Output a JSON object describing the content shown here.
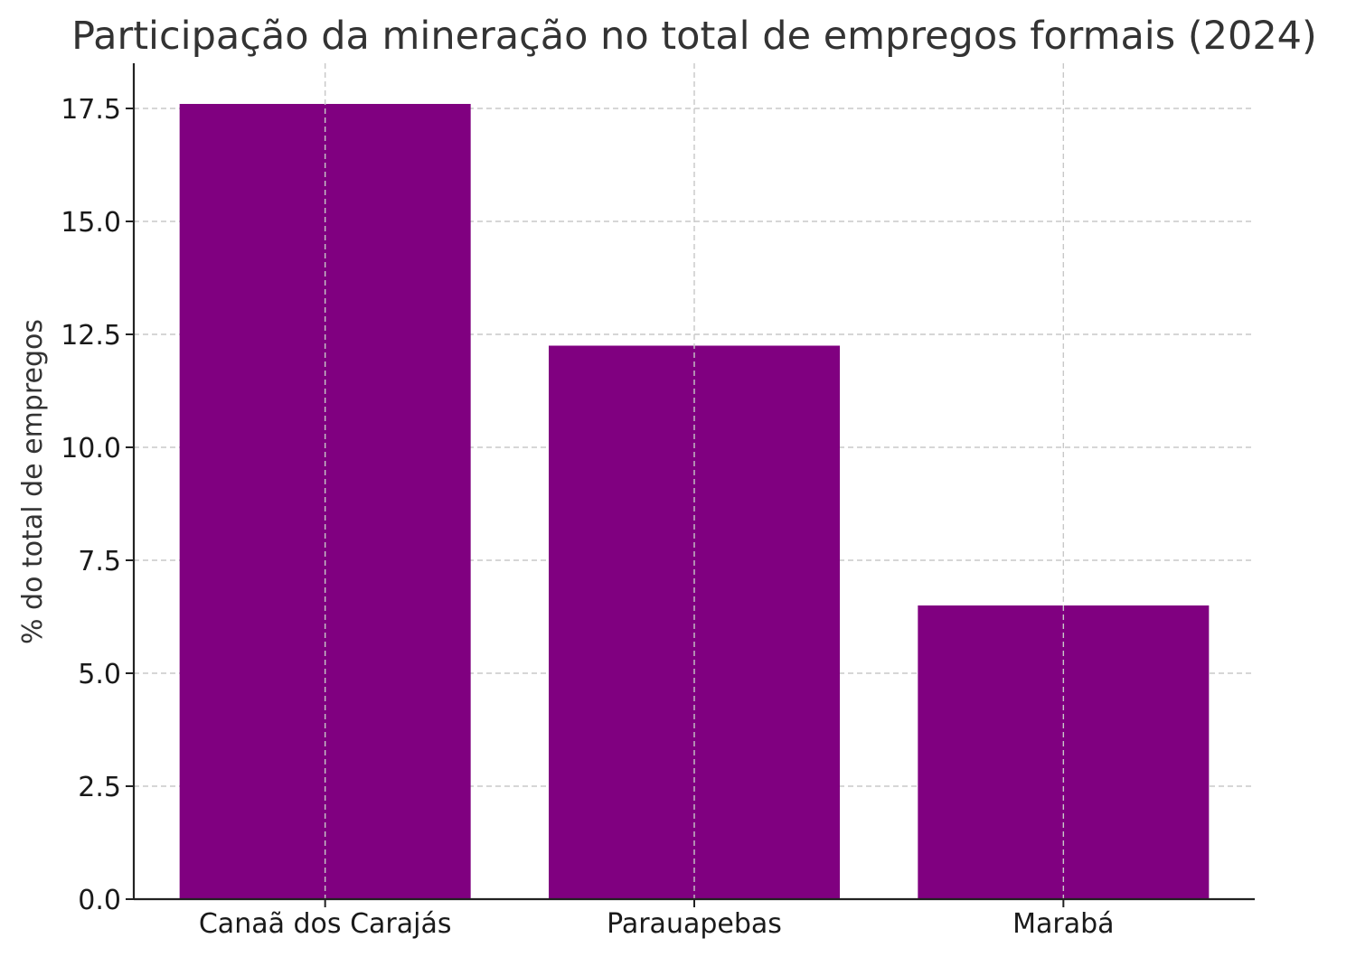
{
  "chart_data": {
    "type": "bar",
    "title": "Participação da mineração no total de empregos formais (2024)",
    "xlabel": "",
    "ylabel": "% do total de empregos",
    "categories": [
      "Canaã dos Carajás",
      "Parauapebas",
      "Marabá"
    ],
    "values": [
      17.6,
      12.25,
      6.5
    ],
    "ylim": [
      0,
      18.5
    ],
    "yticks": [
      0.0,
      2.5,
      5.0,
      7.5,
      10.0,
      12.5,
      15.0,
      17.5
    ],
    "ytick_labels": [
      "0.0",
      "2.5",
      "5.0",
      "7.5",
      "10.0",
      "12.5",
      "15.0",
      "17.5"
    ],
    "grid": true,
    "bar_color": "#800080"
  }
}
